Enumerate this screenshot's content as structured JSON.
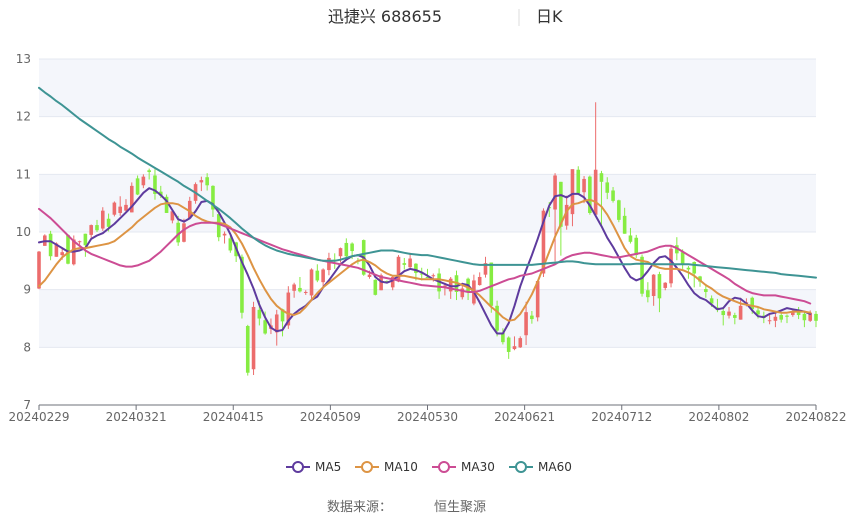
{
  "chart_data": {
    "type": "candlestick",
    "title": "迅捷兴 688655",
    "period_label": "日K",
    "source_label": "数据来源：",
    "source_name": "恒生聚源",
    "y_range": [
      7,
      13
    ],
    "y_ticks": [
      "7",
      "8",
      "9",
      "10",
      "11",
      "12",
      "13"
    ],
    "x_ticks": [
      "20240229",
      "20240321",
      "20240415",
      "20240509",
      "20240530",
      "20240621",
      "20240712",
      "20240802",
      "20240822"
    ],
    "colors": {
      "up": "#ec6c6c",
      "down": "#86ec42",
      "ma5": "#5e3b9e",
      "ma10": "#dd9444",
      "ma30": "#cc4c94",
      "ma60": "#3e9494"
    },
    "grid": true,
    "legend_position": "bottom",
    "series": [
      {
        "name": "MA5",
        "key": "ma5",
        "values": [
          9.82,
          9.84,
          9.84,
          9.78,
          9.72,
          9.66,
          9.66,
          9.68,
          9.72,
          9.88,
          9.94,
          9.98,
          10.06,
          10.14,
          10.24,
          10.34,
          10.44,
          10.56,
          10.68,
          10.76,
          10.72,
          10.64,
          10.54,
          10.38,
          10.22,
          10.18,
          10.24,
          10.36,
          10.52,
          10.54,
          10.48,
          10.34,
          10.16,
          9.96,
          9.72,
          9.48,
          9.26,
          9.02,
          8.74,
          8.52,
          8.34,
          8.28,
          8.3,
          8.46,
          8.58,
          8.66,
          8.72,
          8.82,
          8.88,
          9.04,
          9.16,
          9.3,
          9.44,
          9.52,
          9.58,
          9.6,
          9.56,
          9.42,
          9.22,
          9.14,
          9.12,
          9.16,
          9.24,
          9.32,
          9.36,
          9.34,
          9.3,
          9.24,
          9.18,
          9.14,
          9.1,
          9.06,
          9.06,
          9.1,
          9.08,
          8.96,
          8.78,
          8.58,
          8.38,
          8.24,
          8.24,
          8.42,
          8.72,
          9.06,
          9.34,
          9.6,
          9.88,
          10.18,
          10.46,
          10.62,
          10.64,
          10.6,
          10.66,
          10.66,
          10.6,
          10.46,
          10.28,
          10.1,
          9.9,
          9.74,
          9.56,
          9.38,
          9.22,
          9.16,
          9.2,
          9.32,
          9.46,
          9.56,
          9.58,
          9.5,
          9.38,
          9.24,
          9.08,
          8.94,
          8.86,
          8.82,
          8.74,
          8.66,
          8.68,
          8.8,
          8.86,
          8.84,
          8.76,
          8.64,
          8.54,
          8.52,
          8.58,
          8.6,
          8.64,
          8.68,
          8.66,
          8.64,
          8.62,
          8.58
        ]
      },
      {
        "name": "MA10",
        "key": "ma10",
        "values": [
          9.06,
          9.16,
          9.3,
          9.44,
          9.56,
          9.64,
          9.7,
          9.72,
          9.72,
          9.74,
          9.76,
          9.78,
          9.8,
          9.84,
          9.92,
          10.0,
          10.08,
          10.18,
          10.26,
          10.34,
          10.42,
          10.48,
          10.5,
          10.5,
          10.48,
          10.42,
          10.36,
          10.28,
          10.22,
          10.18,
          10.16,
          10.16,
          10.14,
          10.08,
          9.96,
          9.8,
          9.6,
          9.38,
          9.18,
          9.0,
          8.84,
          8.72,
          8.64,
          8.58,
          8.56,
          8.6,
          8.7,
          8.82,
          8.94,
          9.04,
          9.12,
          9.2,
          9.28,
          9.36,
          9.44,
          9.5,
          9.52,
          9.48,
          9.42,
          9.34,
          9.28,
          9.24,
          9.24,
          9.24,
          9.22,
          9.2,
          9.18,
          9.18,
          9.18,
          9.18,
          9.16,
          9.14,
          9.12,
          9.08,
          9.04,
          8.98,
          8.9,
          8.8,
          8.7,
          8.62,
          8.52,
          8.46,
          8.48,
          8.58,
          8.74,
          8.92,
          9.14,
          9.4,
          9.66,
          9.92,
          10.14,
          10.36,
          10.48,
          10.5,
          10.54,
          10.56,
          10.52,
          10.44,
          10.3,
          10.12,
          9.92,
          9.72,
          9.58,
          9.52,
          9.5,
          9.48,
          9.42,
          9.38,
          9.36,
          9.36,
          9.36,
          9.34,
          9.3,
          9.24,
          9.16,
          9.08,
          9.02,
          8.94,
          8.88,
          8.84,
          8.8,
          8.76,
          8.74,
          8.72,
          8.7,
          8.66,
          8.64,
          8.62,
          8.6,
          8.6,
          8.62,
          8.62,
          8.62,
          8.6
        ]
      },
      {
        "name": "MA30",
        "key": "ma30",
        "values": [
          10.4,
          10.32,
          10.24,
          10.14,
          10.04,
          9.94,
          9.84,
          9.76,
          9.68,
          9.62,
          9.58,
          9.54,
          9.5,
          9.46,
          9.42,
          9.4,
          9.4,
          9.42,
          9.46,
          9.5,
          9.58,
          9.66,
          9.76,
          9.86,
          9.96,
          10.04,
          10.1,
          10.14,
          10.16,
          10.16,
          10.16,
          10.14,
          10.1,
          10.06,
          10.02,
          9.98,
          9.94,
          9.9,
          9.86,
          9.82,
          9.78,
          9.74,
          9.7,
          9.67,
          9.64,
          9.61,
          9.58,
          9.55,
          9.52,
          9.5,
          9.48,
          9.46,
          9.44,
          9.42,
          9.4,
          9.38,
          9.34,
          9.3,
          9.26,
          9.22,
          9.2,
          9.18,
          9.16,
          9.14,
          9.12,
          9.1,
          9.08,
          9.07,
          9.06,
          9.05,
          9.04,
          9.02,
          9.0,
          8.98,
          8.96,
          8.96,
          8.98,
          9.02,
          9.06,
          9.1,
          9.14,
          9.18,
          9.2,
          9.24,
          9.26,
          9.28,
          9.32,
          9.36,
          9.4,
          9.44,
          9.5,
          9.56,
          9.6,
          9.62,
          9.64,
          9.64,
          9.62,
          9.6,
          9.58,
          9.56,
          9.56,
          9.58,
          9.6,
          9.62,
          9.64,
          9.66,
          9.7,
          9.74,
          9.76,
          9.76,
          9.72,
          9.66,
          9.6,
          9.54,
          9.48,
          9.42,
          9.36,
          9.3,
          9.24,
          9.18,
          9.1,
          9.04,
          8.98,
          8.94,
          8.92,
          8.9,
          8.9,
          8.9,
          8.88,
          8.86,
          8.84,
          8.82,
          8.8,
          8.76
        ]
      },
      {
        "name": "MA60",
        "key": "ma60",
        "values": [
          12.5,
          12.42,
          12.35,
          12.27,
          12.2,
          12.12,
          12.04,
          11.96,
          11.89,
          11.82,
          11.75,
          11.68,
          11.61,
          11.55,
          11.48,
          11.42,
          11.36,
          11.29,
          11.23,
          11.17,
          11.11,
          11.05,
          10.99,
          10.93,
          10.87,
          10.8,
          10.74,
          10.68,
          10.61,
          10.54,
          10.47,
          10.4,
          10.32,
          10.24,
          10.15,
          10.06,
          9.98,
          9.9,
          9.83,
          9.77,
          9.72,
          9.68,
          9.65,
          9.62,
          9.6,
          9.58,
          9.56,
          9.54,
          9.52,
          9.5,
          9.5,
          9.5,
          9.52,
          9.55,
          9.58,
          9.6,
          9.62,
          9.64,
          9.66,
          9.68,
          9.68,
          9.68,
          9.66,
          9.64,
          9.62,
          9.61,
          9.6,
          9.6,
          9.58,
          9.56,
          9.54,
          9.52,
          9.5,
          9.48,
          9.46,
          9.44,
          9.43,
          9.43,
          9.43,
          9.43,
          9.43,
          9.43,
          9.43,
          9.43,
          9.43,
          9.43,
          9.44,
          9.45,
          9.46,
          9.47,
          9.48,
          9.49,
          9.49,
          9.48,
          9.46,
          9.45,
          9.44,
          9.44,
          9.44,
          9.44,
          9.44,
          9.44,
          9.44,
          9.45,
          9.45,
          9.45,
          9.44,
          9.44,
          9.44,
          9.44,
          9.44,
          9.44,
          9.44,
          9.43,
          9.42,
          9.41,
          9.4,
          9.39,
          9.38,
          9.37,
          9.36,
          9.35,
          9.34,
          9.33,
          9.32,
          9.31,
          9.3,
          9.29,
          9.27,
          9.26,
          9.25,
          9.24,
          9.23,
          9.22,
          9.21
        ]
      }
    ],
    "candles": [
      [
        9.02,
        9.66,
        9.67,
        9.01
      ],
      [
        9.76,
        9.94,
        9.96,
        9.76
      ],
      [
        9.97,
        9.58,
        10.02,
        9.51
      ],
      [
        9.57,
        9.8,
        9.82,
        9.57
      ],
      [
        9.6,
        9.65,
        9.72,
        9.52
      ],
      [
        9.95,
        9.45,
        9.96,
        9.44
      ],
      [
        9.44,
        9.87,
        9.94,
        9.42
      ],
      [
        9.83,
        9.84,
        9.85,
        9.78
      ],
      [
        9.97,
        9.77,
        9.97,
        9.57
      ],
      [
        9.95,
        10.12,
        10.13,
        9.9
      ],
      [
        10.12,
        10.03,
        10.21,
        10.0
      ],
      [
        10.06,
        10.37,
        10.43,
        10.02
      ],
      [
        10.23,
        10.09,
        10.32,
        10.01
      ],
      [
        10.3,
        10.51,
        10.53,
        10.27
      ],
      [
        10.33,
        10.44,
        10.62,
        10.28
      ],
      [
        10.37,
        10.47,
        10.57,
        10.32
      ],
      [
        10.34,
        10.8,
        10.86,
        10.34
      ],
      [
        10.93,
        10.65,
        10.98,
        10.64
      ],
      [
        10.81,
        10.96,
        11.0,
        10.76
      ],
      [
        11.07,
        11.04,
        11.1,
        10.91
      ],
      [
        10.98,
        10.66,
        11.09,
        10.56
      ],
      [
        10.7,
        10.63,
        10.8,
        10.59
      ],
      [
        10.61,
        10.33,
        10.65,
        10.33
      ],
      [
        10.2,
        10.36,
        10.38,
        10.15
      ],
      [
        10.16,
        9.82,
        10.28,
        9.76
      ],
      [
        9.83,
        10.15,
        10.23,
        9.82
      ],
      [
        10.24,
        10.54,
        10.61,
        10.22
      ],
      [
        10.54,
        10.83,
        10.86,
        10.49
      ],
      [
        10.86,
        10.9,
        10.96,
        10.71
      ],
      [
        10.95,
        10.81,
        11.02,
        10.72
      ],
      [
        10.8,
        10.39,
        10.81,
        10.26
      ],
      [
        10.31,
        9.91,
        10.39,
        9.84
      ],
      [
        9.94,
        9.97,
        10.01,
        9.8
      ],
      [
        9.89,
        9.68,
        9.94,
        9.64
      ],
      [
        9.82,
        9.58,
        9.83,
        9.48
      ],
      [
        9.57,
        8.6,
        9.61,
        8.5
      ],
      [
        8.37,
        7.56,
        8.39,
        7.51
      ],
      [
        7.62,
        8.7,
        8.79,
        7.52
      ],
      [
        8.65,
        8.5,
        8.81,
        8.38
      ],
      [
        8.47,
        8.24,
        8.62,
        8.22
      ],
      [
        8.32,
        8.38,
        8.5,
        8.23
      ],
      [
        8.26,
        8.57,
        8.65,
        8.03
      ],
      [
        8.66,
        8.45,
        8.67,
        8.19
      ],
      [
        8.38,
        8.95,
        9.06,
        8.32
      ],
      [
        8.98,
        9.09,
        9.12,
        8.86
      ],
      [
        9.03,
        8.97,
        9.22,
        8.95
      ],
      [
        8.95,
        8.96,
        8.99,
        8.91
      ],
      [
        8.9,
        9.35,
        9.37,
        8.81
      ],
      [
        9.33,
        9.16,
        9.44,
        9.13
      ],
      [
        9.13,
        9.35,
        9.37,
        9.06
      ],
      [
        9.34,
        9.55,
        9.64,
        9.25
      ],
      [
        9.52,
        9.49,
        9.63,
        9.36
      ],
      [
        9.58,
        9.72,
        9.73,
        9.47
      ],
      [
        9.81,
        9.58,
        9.89,
        9.56
      ],
      [
        9.8,
        9.67,
        9.82,
        9.53
      ],
      [
        9.5,
        9.49,
        9.55,
        9.44
      ],
      [
        9.86,
        9.26,
        9.87,
        9.24
      ],
      [
        9.22,
        9.26,
        9.33,
        9.19
      ],
      [
        9.17,
        8.91,
        9.18,
        8.9
      ],
      [
        8.99,
        9.25,
        9.28,
        8.99
      ],
      [
        9.15,
        9.14,
        9.16,
        9.12
      ],
      [
        9.04,
        9.22,
        9.23,
        8.99
      ],
      [
        9.14,
        9.57,
        9.6,
        9.13
      ],
      [
        9.46,
        9.43,
        9.55,
        9.35
      ],
      [
        9.39,
        9.54,
        9.64,
        9.35
      ],
      [
        9.45,
        9.29,
        9.46,
        9.16
      ],
      [
        9.28,
        9.27,
        9.38,
        9.16
      ],
      [
        9.22,
        9.21,
        9.36,
        9.21
      ],
      [
        9.24,
        9.25,
        9.28,
        9.14
      ],
      [
        9.28,
        8.97,
        9.37,
        8.84
      ],
      [
        9.05,
        9.07,
        9.12,
        8.9
      ],
      [
        8.97,
        9.19,
        9.22,
        8.84
      ],
      [
        9.25,
        8.96,
        9.33,
        8.82
      ],
      [
        8.87,
        9.02,
        9.12,
        8.83
      ],
      [
        9.19,
        8.96,
        9.21,
        8.82
      ],
      [
        8.76,
        9.16,
        9.26,
        8.73
      ],
      [
        9.08,
        9.22,
        9.3,
        9.07
      ],
      [
        9.26,
        9.46,
        9.57,
        9.21
      ],
      [
        9.47,
        8.72,
        9.47,
        8.6
      ],
      [
        8.72,
        8.29,
        8.81,
        8.19
      ],
      [
        8.25,
        8.09,
        8.33,
        8.05
      ],
      [
        8.17,
        7.92,
        8.19,
        7.8
      ],
      [
        7.97,
        8.02,
        8.19,
        7.95
      ],
      [
        8.0,
        8.16,
        8.19,
        7.99
      ],
      [
        8.21,
        8.61,
        8.79,
        8.04
      ],
      [
        8.55,
        8.49,
        8.63,
        8.41
      ],
      [
        8.52,
        9.15,
        9.16,
        8.45
      ],
      [
        9.28,
        10.37,
        10.41,
        9.22
      ],
      [
        10.43,
        10.42,
        10.52,
        10.26
      ],
      [
        10.39,
        10.98,
        11.02,
        9.49
      ],
      [
        10.87,
        10.09,
        10.87,
        9.59
      ],
      [
        10.11,
        10.47,
        10.63,
        10.04
      ],
      [
        10.31,
        11.09,
        11.08,
        10.1
      ],
      [
        11.08,
        10.67,
        11.14,
        10.64
      ],
      [
        10.69,
        10.92,
        10.97,
        10.5
      ],
      [
        10.96,
        10.33,
        10.98,
        10.3
      ],
      [
        10.3,
        11.08,
        12.25,
        10.26
      ],
      [
        11.02,
        10.87,
        11.06,
        10.11
      ],
      [
        10.86,
        10.68,
        10.95,
        10.57
      ],
      [
        10.72,
        10.54,
        10.78,
        10.51
      ],
      [
        10.55,
        10.21,
        10.56,
        10.17
      ],
      [
        10.28,
        9.97,
        10.42,
        9.97
      ],
      [
        9.94,
        9.83,
        10.07,
        9.8
      ],
      [
        9.9,
        9.6,
        9.95,
        9.55
      ],
      [
        9.57,
        8.93,
        9.61,
        8.88
      ],
      [
        8.99,
        8.87,
        9.13,
        8.78
      ],
      [
        8.89,
        9.26,
        9.27,
        8.72
      ],
      [
        9.27,
        8.85,
        9.31,
        8.61
      ],
      [
        9.03,
        9.12,
        9.13,
        8.99
      ],
      [
        9.11,
        9.71,
        9.76,
        9.04
      ],
      [
        9.77,
        9.63,
        9.91,
        9.51
      ],
      [
        9.65,
        9.44,
        9.7,
        9.36
      ],
      [
        9.38,
        9.35,
        9.41,
        9.19
      ],
      [
        9.48,
        9.28,
        9.49,
        9.04
      ],
      [
        9.23,
        9.14,
        9.24,
        9.05
      ],
      [
        9.01,
        8.96,
        9.1,
        8.86
      ],
      [
        8.85,
        8.76,
        8.9,
        8.7
      ],
      [
        8.69,
        8.65,
        8.84,
        8.61
      ],
      [
        8.63,
        8.56,
        8.69,
        8.38
      ],
      [
        8.55,
        8.62,
        8.7,
        8.5
      ],
      [
        8.56,
        8.51,
        8.6,
        8.4
      ],
      [
        8.48,
        8.72,
        8.86,
        8.48
      ],
      [
        8.76,
        8.78,
        8.85,
        8.71
      ],
      [
        8.86,
        8.66,
        8.88,
        8.58
      ],
      [
        8.64,
        8.57,
        8.7,
        8.5
      ],
      [
        8.55,
        8.51,
        8.62,
        8.42
      ],
      [
        8.46,
        8.47,
        8.56,
        8.4
      ],
      [
        8.46,
        8.53,
        8.61,
        8.35
      ],
      [
        8.56,
        8.48,
        8.6,
        8.43
      ],
      [
        8.55,
        8.53,
        8.57,
        8.42
      ],
      [
        8.56,
        8.63,
        8.66,
        8.53
      ],
      [
        8.64,
        8.56,
        8.7,
        8.49
      ],
      [
        8.58,
        8.47,
        8.63,
        8.35
      ],
      [
        8.46,
        8.6,
        8.64,
        8.44
      ],
      [
        8.58,
        8.46,
        8.63,
        8.35
      ]
    ]
  }
}
